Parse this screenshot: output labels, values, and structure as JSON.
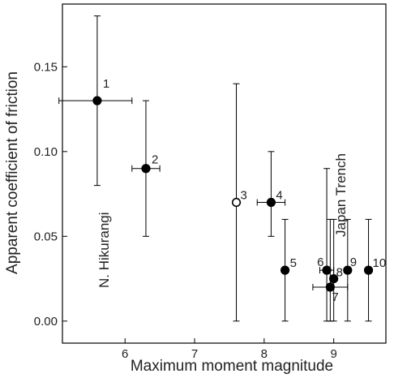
{
  "chart_data": {
    "type": "scatter",
    "title": "",
    "xlabel": "Maximum moment magnitude",
    "ylabel": "Apparent coefficient of friction",
    "xlim": [
      5.1,
      9.75
    ],
    "ylim": [
      -0.013,
      0.187
    ],
    "xticks": [
      6,
      7,
      8,
      9
    ],
    "yticks": [
      0.0,
      0.05,
      0.1,
      0.15
    ],
    "xtick_labels": [
      "6",
      "7",
      "8",
      "9"
    ],
    "ytick_labels": [
      "0.00",
      "0.05",
      "0.10",
      "0.15"
    ],
    "grid": false,
    "points": [
      {
        "label": "1",
        "x": 5.6,
        "y": 0.13,
        "xerr": [
          5.05,
          6.1
        ],
        "yerr": [
          0.08,
          0.18
        ],
        "filled": true
      },
      {
        "label": "2",
        "x": 6.3,
        "y": 0.09,
        "xerr": [
          6.1,
          6.5
        ],
        "yerr": [
          0.05,
          0.13
        ],
        "filled": true
      },
      {
        "label": "3",
        "x": 7.6,
        "y": 0.07,
        "xerr": null,
        "yerr": [
          0.0,
          0.14
        ],
        "filled": false
      },
      {
        "label": "4",
        "x": 8.1,
        "y": 0.07,
        "xerr": [
          7.9,
          8.3
        ],
        "yerr": [
          0.05,
          0.1
        ],
        "filled": true
      },
      {
        "label": "5",
        "x": 8.3,
        "y": 0.03,
        "xerr": null,
        "yerr": [
          0.0,
          0.06
        ],
        "filled": true
      },
      {
        "label": "6",
        "x": 8.9,
        "y": 0.03,
        "xerr": [
          8.8,
          9.0
        ],
        "yerr": [
          0.0,
          0.09
        ],
        "filled": true
      },
      {
        "label": "7",
        "x": 8.95,
        "y": 0.02,
        "xerr": [
          8.7,
          9.2
        ],
        "yerr": [
          0.0,
          0.06
        ],
        "filled": true
      },
      {
        "label": "8",
        "x": 9.0,
        "y": 0.025,
        "xerr": null,
        "yerr": [
          0.0,
          0.06
        ],
        "filled": true
      },
      {
        "label": "9",
        "x": 9.2,
        "y": 0.03,
        "xerr": null,
        "yerr": [
          0.0,
          0.06
        ],
        "filled": true
      },
      {
        "label": "10",
        "x": 9.5,
        "y": 0.03,
        "xerr": null,
        "yerr": [
          0.0,
          0.06
        ],
        "filled": true
      }
    ],
    "annotations": [
      {
        "text": "N. Hikurangi"
      },
      {
        "text": "Japan Trench"
      }
    ]
  }
}
